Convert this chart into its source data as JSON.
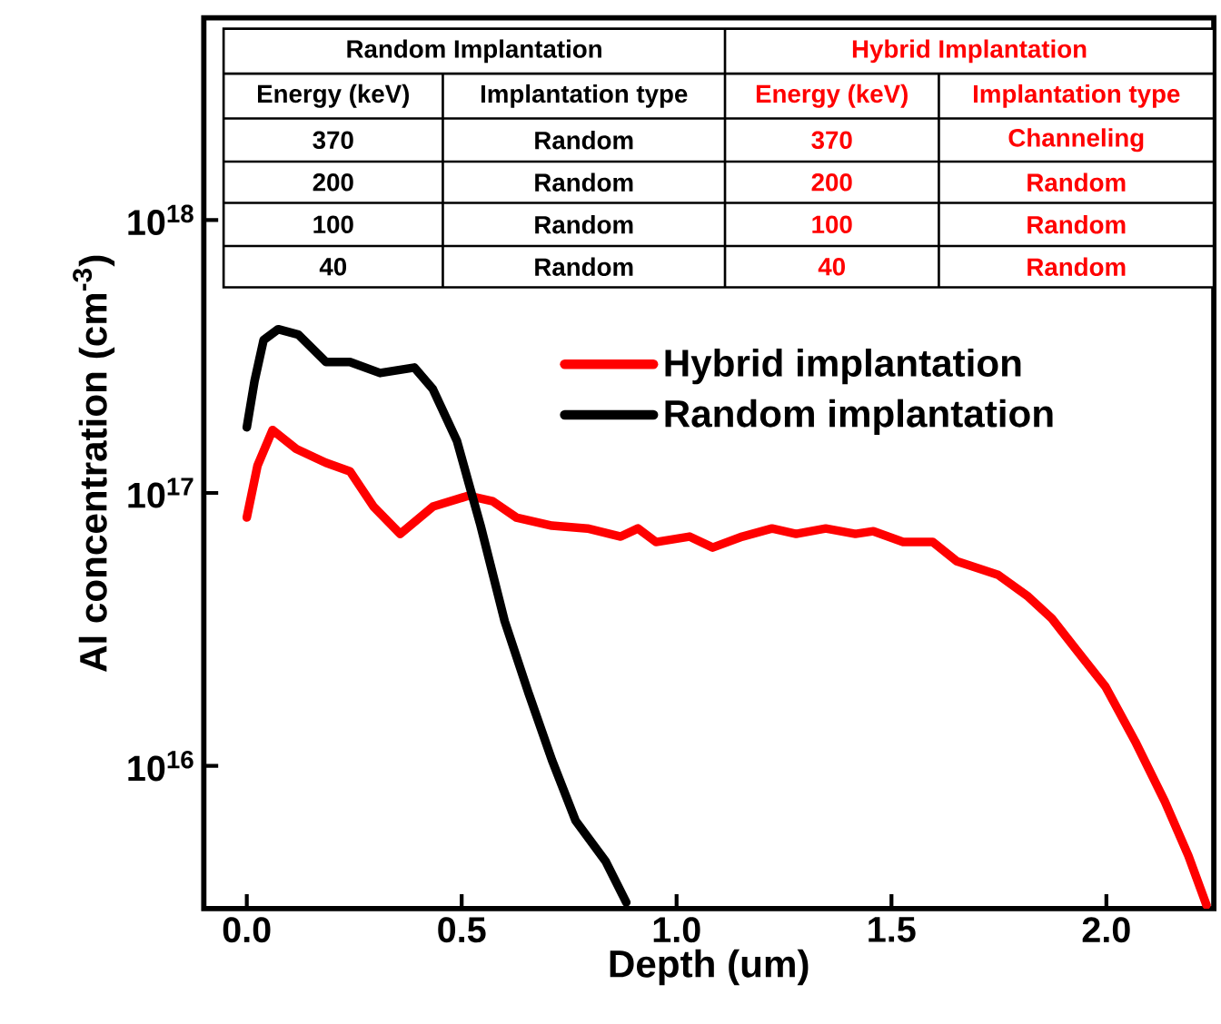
{
  "chart_data": {
    "type": "line",
    "xlabel": "Depth (um)",
    "ylabel": "Al concentration (cm$^{-3}$)",
    "log": "y",
    "xlim": [
      -0.1,
      2.25
    ],
    "ylim": [
      3000000000000000.0,
      5.5e+18
    ],
    "xticks": [
      {
        "value": 0,
        "label": "0.0"
      },
      {
        "value": 0.5,
        "label": "0.5"
      },
      {
        "value": 1.0,
        "label": "1.0"
      },
      {
        "value": 1.5,
        "label": "1.5"
      },
      {
        "value": 2.0,
        "label": "2.0"
      }
    ],
    "yticks": [
      {
        "value": 1e+16,
        "label": "10$^{16}$"
      },
      {
        "value": 1e+17,
        "label": "10$^{17}$"
      },
      {
        "value": 1e+18,
        "label": "10$^{18}$"
      }
    ],
    "legend": "top right",
    "grid": false,
    "marker": "none",
    "line_style": "solid",
    "series": [
      {
        "name": "Hybrid implantation",
        "color": "#ff0000",
        "x": [
          0.0,
          0.025,
          0.06,
          0.115,
          0.184,
          0.24,
          0.295,
          0.357,
          0.433,
          0.516,
          0.572,
          0.627,
          0.71,
          0.793,
          0.87,
          0.91,
          0.952,
          1.03,
          1.084,
          1.153,
          1.222,
          1.278,
          1.347,
          1.416,
          1.458,
          1.527,
          1.596,
          1.652,
          1.748,
          1.818,
          1.873,
          1.928,
          1.998,
          2.067,
          2.136,
          2.191,
          2.233
        ],
        "values": [
          8.13e+16,
          1.26e+17,
          1.7e+17,
          1.45e+17,
          1.29e+17,
          1.2e+17,
          8.91e+16,
          7.08e+16,
          8.91e+16,
          9.77e+16,
          9.33e+16,
          8.13e+16,
          7.59e+16,
          7.41e+16,
          6.92e+16,
          7.41e+16,
          6.61e+16,
          6.92e+16,
          6.31e+16,
          6.92e+16,
          7.41e+16,
          7.08e+16,
          7.41e+16,
          7.08e+16,
          7.24e+16,
          6.61e+16,
          6.61e+16,
          5.62e+16,
          5.01e+16,
          4.17e+16,
          3.47e+16,
          2.69e+16,
          1.95e+16,
          1.23e+16,
          7410000000000000.0,
          4680000000000000.0,
          3090000000000000.0
        ]
      },
      {
        "name": "Random implantation",
        "color": "#000000",
        "x": [
          0.0,
          0.018,
          0.039,
          0.073,
          0.12,
          0.184,
          0.24,
          0.31,
          0.39,
          0.433,
          0.489,
          0.544,
          0.6,
          0.655,
          0.71,
          0.765,
          0.835,
          0.883
        ],
        "values": [
          1.74e+17,
          2.57e+17,
          3.63e+17,
          3.98e+17,
          3.8e+17,
          3.02e+17,
          3.02e+17,
          2.75e+17,
          2.88e+17,
          2.4e+17,
          1.55e+17,
          7.59e+16,
          3.39e+16,
          1.86e+16,
          1.05e+16,
          6300000000000000.0,
          4470000000000000.0,
          3160000000000000.0
        ]
      }
    ],
    "annotations": [
      "Random Implantation",
      "Hybrid Implantation",
      "Energy (keV)",
      "Implantation type",
      "Energy (keV)",
      "Implantation type",
      "370",
      "Random",
      "370",
      "Channeling",
      "200",
      "Random",
      "200",
      "Random",
      "100",
      "Random",
      "100",
      "Random",
      "40",
      "Random",
      "40",
      "Random"
    ]
  }
}
